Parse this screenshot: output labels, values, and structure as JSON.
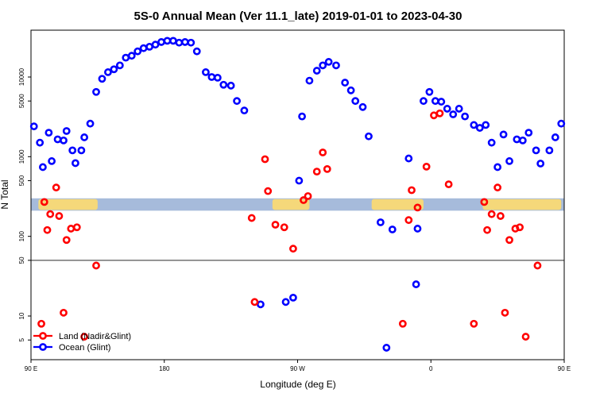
{
  "chart_data": {
    "type": "scatter",
    "title": "5S-0 Annual Mean (Ver 11.1_late)   2019-01-01 to 2023-04-30",
    "xlabel": "Longitude (deg E)",
    "ylabel": "N Total",
    "x_scale": "linear",
    "y_scale": "log",
    "xlim": [
      90,
      450
    ],
    "ylim": [
      3.5,
      60000
    ],
    "x_ticks": [
      {
        "value": 90,
        "label": "90 E"
      },
      {
        "value": 180,
        "label": "180"
      },
      {
        "value": 270,
        "label": "90 W"
      },
      {
        "value": 360,
        "label": "0"
      },
      {
        "value": 450,
        "label": "90 E"
      },
      {
        "value": 540,
        "label": "180"
      }
    ],
    "y_ticks": [
      {
        "value": 5,
        "label": "5"
      },
      {
        "value": 10,
        "label": "10"
      },
      {
        "value": 50,
        "label": "50"
      },
      {
        "value": 100,
        "label": "100"
      },
      {
        "value": 500,
        "label": "500"
      },
      {
        "value": 1000,
        "label": "1000"
      },
      {
        "value": 5000,
        "label": "5000"
      },
      {
        "value": 10000,
        "label": "10000"
      }
    ],
    "reference_line": {
      "y": 50,
      "color": "#555555"
    },
    "latitude_band": {
      "y_low": 210,
      "y_high": 300,
      "ocean_color": "#a6bbdb",
      "land_color": "#f5d87a"
    },
    "legend": {
      "placement": "bottom-left",
      "entries": [
        {
          "label": "Land (Nadir&Glint)",
          "color": "#ff0000"
        },
        {
          "label": "Ocean (Glint)",
          "color": "#0000ff"
        }
      ]
    },
    "series": [
      {
        "name": "Ocean (Glint)",
        "color": "#0000ff",
        "points": [
          [
            92,
            2400
          ],
          [
            96,
            1500
          ],
          [
            98,
            740
          ],
          [
            102,
            2000
          ],
          [
            104,
            880
          ],
          [
            108,
            1650
          ],
          [
            112,
            1600
          ],
          [
            114,
            2100
          ],
          [
            118,
            1200
          ],
          [
            120,
            830
          ],
          [
            124,
            1200
          ],
          [
            126,
            1750
          ],
          [
            130,
            2600
          ],
          [
            134,
            6500
          ],
          [
            138,
            9500
          ],
          [
            142,
            11500
          ],
          [
            146,
            12500
          ],
          [
            150,
            14000
          ],
          [
            154,
            17500
          ],
          [
            158,
            18500
          ],
          [
            162,
            21000
          ],
          [
            166,
            23000
          ],
          [
            170,
            24000
          ],
          [
            174,
            25500
          ],
          [
            178,
            27500
          ],
          [
            182,
            28500
          ],
          [
            186,
            28500
          ],
          [
            190,
            27000
          ],
          [
            194,
            27500
          ],
          [
            198,
            27000
          ],
          [
            202,
            21000
          ],
          [
            208,
            11500
          ],
          [
            212,
            10000
          ],
          [
            216,
            9800
          ],
          [
            220,
            8000
          ],
          [
            225,
            7800
          ],
          [
            229,
            5000
          ],
          [
            234,
            3800
          ],
          [
            245,
            14
          ],
          [
            262,
            15
          ],
          [
            267,
            17
          ],
          [
            271,
            500
          ],
          [
            273,
            3200
          ],
          [
            278,
            9000
          ],
          [
            283,
            12000
          ],
          [
            287,
            14000
          ],
          [
            291,
            15500
          ],
          [
            296,
            14000
          ],
          [
            302,
            8500
          ],
          [
            306,
            6800
          ],
          [
            309,
            5000
          ],
          [
            314,
            4200
          ],
          [
            318,
            1800
          ],
          [
            326,
            150
          ],
          [
            330,
            4
          ],
          [
            334,
            122
          ],
          [
            345,
            950
          ],
          [
            350,
            25
          ],
          [
            351,
            125
          ],
          [
            355,
            5000
          ],
          [
            359,
            6500
          ],
          [
            363,
            5000
          ],
          [
            367,
            4900
          ],
          [
            371,
            4000
          ],
          [
            375,
            3400
          ],
          [
            379,
            4000
          ],
          [
            383,
            3200
          ],
          [
            389,
            2500
          ],
          [
            393,
            2300
          ],
          [
            397,
            2500
          ],
          [
            401,
            1500
          ],
          [
            405,
            740
          ],
          [
            409,
            1900
          ],
          [
            413,
            880
          ],
          [
            418,
            1650
          ],
          [
            422,
            1600
          ],
          [
            426,
            2000
          ],
          [
            431,
            1200
          ],
          [
            434,
            820
          ],
          [
            440,
            1200
          ],
          [
            444,
            1750
          ],
          [
            448,
            2600
          ],
          [
            452,
            6500
          ],
          [
            456,
            9500
          ],
          [
            460,
            11500
          ],
          [
            464,
            12500
          ],
          [
            468,
            14000
          ]
        ]
      },
      {
        "name": "Land (Nadir&Glint)",
        "color": "#ff0000",
        "points": [
          [
            97,
            8
          ],
          [
            99,
            270
          ],
          [
            101,
            120
          ],
          [
            103,
            190
          ],
          [
            107,
            410
          ],
          [
            109,
            180
          ],
          [
            112,
            11
          ],
          [
            114,
            90
          ],
          [
            117,
            125
          ],
          [
            121,
            130
          ],
          [
            126,
            5.5
          ],
          [
            134,
            43
          ],
          [
            239,
            170
          ],
          [
            241,
            15
          ],
          [
            248,
            930
          ],
          [
            250,
            370
          ],
          [
            255,
            140
          ],
          [
            261,
            130
          ],
          [
            267,
            70
          ],
          [
            274,
            285
          ],
          [
            277,
            320
          ],
          [
            283,
            650
          ],
          [
            287,
            1130
          ],
          [
            290,
            700
          ],
          [
            341,
            8
          ],
          [
            345,
            160
          ],
          [
            347,
            380
          ],
          [
            351,
            230
          ],
          [
            357,
            750
          ],
          [
            362,
            3300
          ],
          [
            366,
            3500
          ],
          [
            372,
            450
          ],
          [
            389,
            8
          ],
          [
            396,
            270
          ],
          [
            398,
            120
          ],
          [
            401,
            190
          ],
          [
            405,
            410
          ],
          [
            407,
            180
          ],
          [
            410,
            11
          ],
          [
            413,
            90
          ],
          [
            417,
            125
          ],
          [
            420,
            130
          ],
          [
            424,
            5.5
          ],
          [
            432,
            43
          ]
        ]
      }
    ],
    "land_regions": [
      {
        "x": [
          95,
          135
        ]
      },
      {
        "x": [
          253,
          278
        ]
      },
      {
        "x": [
          320,
          355
        ]
      },
      {
        "x": [
          395,
          448
        ]
      }
    ]
  }
}
